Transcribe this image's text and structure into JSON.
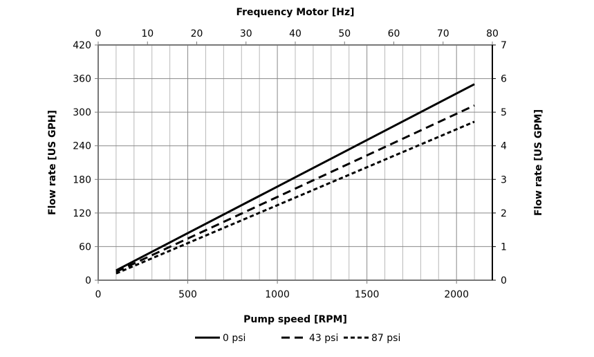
{
  "chart_data": {
    "type": "line",
    "xlabel": "Pump speed [RPM]",
    "ylabel": "Flow rate [US GPH]",
    "x2label": "Frequency Motor [Hz]",
    "y2label": "Flow rate [US GPM]",
    "xlim": [
      0,
      2200
    ],
    "ylim": [
      0,
      420
    ],
    "x2lim": [
      0,
      80
    ],
    "y2lim": [
      0,
      7
    ],
    "xticks": [
      0,
      500,
      1000,
      1500,
      2000
    ],
    "yticks": [
      0,
      60,
      120,
      180,
      240,
      300,
      360,
      420
    ],
    "x2ticks": [
      0,
      10,
      20,
      30,
      40,
      50,
      60,
      70,
      80
    ],
    "y2ticks": [
      0,
      1,
      2,
      3,
      4,
      5,
      6,
      7
    ],
    "grid": true,
    "legend_position": "bottom",
    "series": [
      {
        "name": "0 psi",
        "style": "solid",
        "x": [
          100,
          2100
        ],
        "y": [
          17.5,
          350
        ]
      },
      {
        "name": "43 psi",
        "style": "long-dash",
        "x": [
          100,
          2100
        ],
        "y": [
          15,
          312
        ]
      },
      {
        "name": "87 psi",
        "style": "short-dash",
        "x": [
          100,
          2100
        ],
        "y": [
          12,
          283
        ]
      }
    ],
    "colors": {
      "line": "#000000",
      "grid": "#b8b8b8",
      "major_grid": "#888888"
    }
  }
}
